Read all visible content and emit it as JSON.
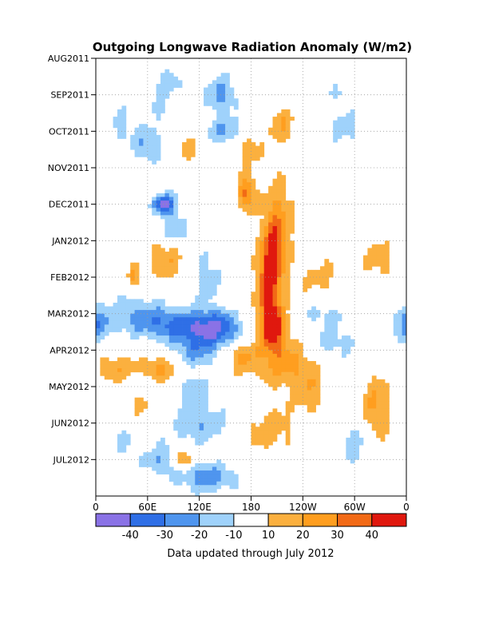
{
  "chart_data": {
    "type": "heatmap",
    "title": "Outgoing Longwave Radiation Anomaly (W/m2)",
    "footer": "Data updated through July 2012",
    "xlabel": "",
    "ylabel": "",
    "x_ticks": [
      "0",
      "60E",
      "120E",
      "180",
      "120W",
      "60W",
      "0"
    ],
    "x_tick_values": [
      0,
      60,
      120,
      180,
      240,
      300,
      360
    ],
    "x_range": [
      0,
      360
    ],
    "y_ticks": [
      "AUG2011",
      "SEP2011",
      "OCT2011",
      "NOV2011",
      "DEC2011",
      "JAN2012",
      "FEB2012",
      "MAR2012",
      "APR2012",
      "MAY2012",
      "JUN2012",
      "JUL2012"
    ],
    "y_range_months": [
      0,
      12
    ],
    "grid": true,
    "colorbar": {
      "labels": [
        "-40",
        "-30",
        "-20",
        "-10",
        "10",
        "20",
        "30",
        "40"
      ],
      "bins": [
        {
          "color": "#8a72e6"
        },
        {
          "color": "#2f6fe6"
        },
        {
          "color": "#4f95ee"
        },
        {
          "color": "#9fd2fb"
        },
        {
          "color": "#ffffff"
        },
        {
          "color": "#fbb03f"
        },
        {
          "color": "#ff9e1f"
        },
        {
          "color": "#f26a16"
        },
        {
          "color": "#e0180e"
        }
      ]
    },
    "thresholds": [
      -40,
      -30,
      -20,
      -10,
      10,
      20,
      30,
      40
    ],
    "anomaly_features": [
      {
        "lon": 175,
        "month": 3.7,
        "value": 35,
        "slon": 7,
        "smon": 0.35
      },
      {
        "lon": 205,
        "month": 7.3,
        "value": 42,
        "slon": 9,
        "smon": 0.5
      },
      {
        "lon": 200,
        "month": 6.1,
        "value": 32,
        "slon": 10,
        "smon": 0.6
      },
      {
        "lon": 205,
        "month": 5.2,
        "value": 28,
        "slon": 10,
        "smon": 0.6
      },
      {
        "lon": 212,
        "month": 4.3,
        "value": 20,
        "slon": 13,
        "smon": 0.8
      },
      {
        "lon": 225,
        "month": 8.4,
        "value": 15,
        "slon": 25,
        "smon": 0.45
      },
      {
        "lon": 205,
        "month": 7.6,
        "value": 14,
        "slon": 35,
        "smon": 0.9
      },
      {
        "lon": 168,
        "month": 8.2,
        "value": 18,
        "slon": 10,
        "smon": 0.25
      },
      {
        "lon": 178,
        "month": 2.4,
        "value": 16,
        "slon": 12,
        "smon": 0.4
      },
      {
        "lon": 145,
        "month": 7.4,
        "value": -35,
        "slon": 22,
        "smon": 0.35
      },
      {
        "lon": 95,
        "month": 7.3,
        "value": -30,
        "slon": 30,
        "smon": 0.3
      },
      {
        "lon": 115,
        "month": 8.0,
        "value": -25,
        "slon": 20,
        "smon": 0.35
      },
      {
        "lon": 45,
        "month": 7.0,
        "value": -18,
        "slon": 25,
        "smon": 0.4
      },
      {
        "lon": 80,
        "month": 4.0,
        "value": -42,
        "slon": 10,
        "smon": 0.2
      },
      {
        "lon": 60,
        "month": 2.4,
        "value": -22,
        "slon": 12,
        "smon": 0.35
      },
      {
        "lon": 70,
        "month": 1.0,
        "value": -20,
        "slon": 12,
        "smon": 0.5
      },
      {
        "lon": 90,
        "month": 0.8,
        "value": -15,
        "slon": 10,
        "smon": 0.4
      },
      {
        "lon": 145,
        "month": 1.0,
        "value": -22,
        "slon": 15,
        "smon": 0.4
      },
      {
        "lon": 150,
        "month": 2.0,
        "value": -20,
        "slon": 18,
        "smon": 0.25
      },
      {
        "lon": 130,
        "month": 6.0,
        "value": -15,
        "slon": 12,
        "smon": 0.6
      },
      {
        "lon": 90,
        "month": 4.7,
        "value": -20,
        "slon": 12,
        "smon": 0.3
      },
      {
        "lon": 80,
        "month": 5.5,
        "value": 20,
        "slon": 15,
        "smon": 0.4
      },
      {
        "lon": 45,
        "month": 6.0,
        "value": 22,
        "slon": 6,
        "smon": 0.25
      },
      {
        "lon": 75,
        "month": 8.6,
        "value": 25,
        "slon": 22,
        "smon": 0.35
      },
      {
        "lon": 55,
        "month": 9.5,
        "value": 18,
        "slon": 10,
        "smon": 0.3
      },
      {
        "lon": 100,
        "month": 11.0,
        "value": 38,
        "slon": 8,
        "smon": 0.2
      },
      {
        "lon": 90,
        "month": 1.2,
        "value": 18,
        "slon": 10,
        "smon": 0.3
      },
      {
        "lon": 110,
        "month": 2.5,
        "value": 15,
        "slon": 8,
        "smon": 0.3
      },
      {
        "lon": 20,
        "month": 8.5,
        "value": 18,
        "slon": 15,
        "smon": 0.3
      },
      {
        "lon": 0,
        "month": 7.3,
        "value": -25,
        "slon": 12,
        "smon": 0.35
      },
      {
        "lon": 120,
        "month": 10.0,
        "value": -20,
        "slon": 25,
        "smon": 0.4
      },
      {
        "lon": 80,
        "month": 11.0,
        "value": -20,
        "slon": 20,
        "smon": 0.3
      },
      {
        "lon": 130,
        "month": 11.5,
        "value": -25,
        "slon": 25,
        "smon": 0.3
      },
      {
        "lon": 60,
        "month": 9.0,
        "value": -15,
        "slon": 15,
        "smon": 0.3
      },
      {
        "lon": 110,
        "month": 9.0,
        "value": -20,
        "slon": 15,
        "smon": 0.3
      },
      {
        "lon": 30,
        "month": 10.5,
        "value": -12,
        "slon": 10,
        "smon": 0.3
      },
      {
        "lon": 200,
        "month": 10.2,
        "value": 15,
        "slon": 25,
        "smon": 0.5
      },
      {
        "lon": 250,
        "month": 9.2,
        "value": 15,
        "slon": 15,
        "smon": 0.4
      },
      {
        "lon": 330,
        "month": 5.5,
        "value": 15,
        "slon": 15,
        "smon": 0.4
      },
      {
        "lon": 325,
        "month": 9.6,
        "value": 22,
        "slon": 12,
        "smon": 0.7
      },
      {
        "lon": 300,
        "month": 10.6,
        "value": -15,
        "slon": 15,
        "smon": 0.5
      },
      {
        "lon": 270,
        "month": 7.8,
        "value": -18,
        "slon": 25,
        "smon": 0.35
      },
      {
        "lon": 255,
        "month": 7.0,
        "value": -15,
        "slon": 30,
        "smon": 0.25
      },
      {
        "lon": 265,
        "month": 6.0,
        "value": 12,
        "slon": 20,
        "smon": 0.4
      },
      {
        "lon": 290,
        "month": 2.0,
        "value": -12,
        "slon": 15,
        "smon": 0.5
      },
      {
        "lon": 215,
        "month": 1.8,
        "value": 20,
        "slon": 10,
        "smon": 0.4
      },
      {
        "lon": 280,
        "month": 0.8,
        "value": -12,
        "slon": 20,
        "smon": 0.4
      },
      {
        "lon": 300,
        "month": 0.6,
        "value": 15,
        "slon": 15,
        "smon": 0.3
      },
      {
        "lon": 60,
        "month": 0.6,
        "value": 12,
        "slon": 10,
        "smon": 0.5
      },
      {
        "lon": 30,
        "month": 1.8,
        "value": -15,
        "slon": 10,
        "smon": 0.4
      }
    ]
  }
}
